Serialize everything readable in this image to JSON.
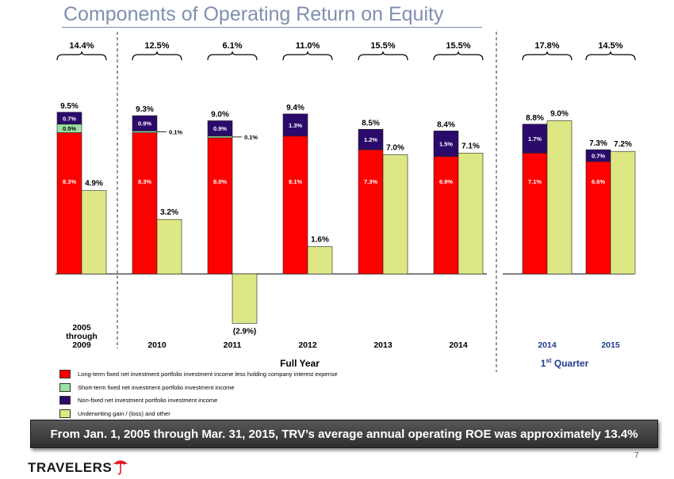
{
  "title": "Components of Operating Return on Equity",
  "banner_text": "From Jan. 1, 2005 through Mar. 31, 2015, TRV’s average annual operating ROE was approximately 13.4%",
  "page_number": "7",
  "logo_text": "TRAVELERS",
  "colors": {
    "long_term": "#ff0000",
    "short_term": "#99e0a2",
    "non_fixed": "#2b0a6b",
    "underwriting": "#dde884"
  },
  "chart_data": {
    "type": "bar",
    "stacked": true,
    "unit": "%",
    "y_range": [
      -3.0,
      10.0
    ],
    "groups": [
      {
        "label": "2005\nthrough\n2009",
        "roe": "14.4%",
        "long_term": 8.3,
        "short_term": 0.5,
        "non_fixed": 0.7,
        "underwriting": 4.9,
        "labels": {
          "long_term": "8.3%",
          "short_term": "0.5%",
          "non_fixed": "0.7%",
          "total": "9.5%",
          "underwriting": "4.9%"
        }
      },
      {
        "label": "2010",
        "roe": "12.5%",
        "long_term": 8.3,
        "short_term": 0.1,
        "non_fixed": 0.9,
        "underwriting": 3.2,
        "labels": {
          "long_term": "8.3%",
          "short_term": "0.1%",
          "non_fixed": "0.9%",
          "total": "9.3%",
          "underwriting": "3.2%"
        }
      },
      {
        "label": "2011",
        "roe": "6.1%",
        "long_term": 8.0,
        "short_term": 0.1,
        "non_fixed": 0.9,
        "underwriting": -2.9,
        "labels": {
          "long_term": "8.0%",
          "short_term": "0.1%",
          "non_fixed": "0.9%",
          "total": "9.0%",
          "underwriting": "(2.9%)"
        }
      },
      {
        "label": "2012",
        "roe": "11.0%",
        "long_term": 8.1,
        "short_term": 0,
        "non_fixed": 1.3,
        "underwriting": 1.6,
        "labels": {
          "long_term": "8.1%",
          "non_fixed": "1.3%",
          "total": "9.4%",
          "underwriting": "1.6%"
        }
      },
      {
        "label": "2013",
        "roe": "15.5%",
        "long_term": 7.3,
        "short_term": 0,
        "non_fixed": 1.2,
        "underwriting": 7.0,
        "labels": {
          "long_term": "7.3%",
          "non_fixed": "1.2%",
          "total": "8.5%",
          "underwriting": "7.0%"
        }
      },
      {
        "label": "2014",
        "roe": "15.5%",
        "long_term": 6.9,
        "short_term": 0,
        "non_fixed": 1.5,
        "underwriting": 7.1,
        "labels": {
          "long_term": "6.9%",
          "non_fixed": "1.5%",
          "total": "8.4%",
          "underwriting": "7.1%"
        }
      },
      {
        "label": "2014",
        "roe": "17.8%",
        "long_term": 7.1,
        "short_term": 0,
        "non_fixed": 1.7,
        "underwriting": 9.0,
        "labels": {
          "long_term": "7.1%",
          "non_fixed": "1.7%",
          "total": "8.8%",
          "underwriting": "9.0%"
        }
      },
      {
        "label": "2015",
        "roe": "14.5%",
        "long_term": 6.6,
        "short_term": 0,
        "non_fixed": 0.7,
        "underwriting": 7.2,
        "labels": {
          "long_term": "6.6%",
          "non_fixed": "0.7%",
          "total": "7.3%",
          "underwriting": "7.2%"
        }
      }
    ],
    "section_labels": {
      "full_year": "Full Year",
      "quarter_main": "1",
      "quarter_sup": "st",
      "quarter_rest": " Quarter"
    },
    "legend": [
      {
        "key": "long_term",
        "label": "Long-term fixed net investment portfolio investment income less holding company interest expense"
      },
      {
        "key": "short_term",
        "label": "Short-term fixed net investment portfolio investment income"
      },
      {
        "key": "non_fixed",
        "label": "Non-fixed net investment portfolio investment income"
      },
      {
        "key": "underwriting",
        "label": "Underwriting gain / (loss) and other"
      }
    ]
  }
}
